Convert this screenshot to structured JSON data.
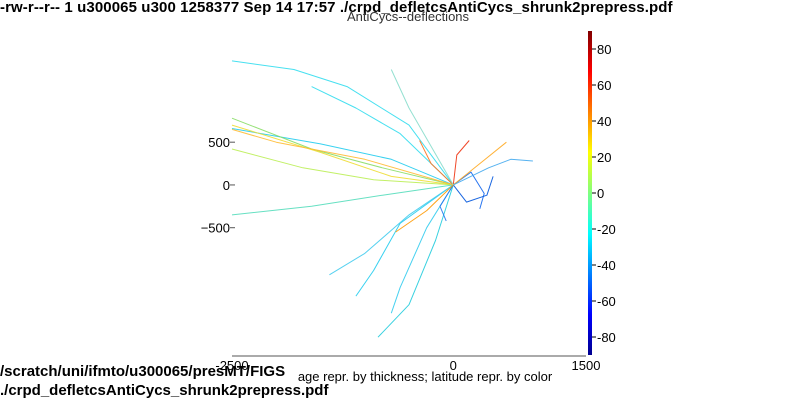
{
  "header": {
    "text": "-rw-r--r-- 1 u300065 u300 1258377 Sep 14 17:57 ./crpd_defletcsAntiCycs_shrunk2prepress.pdf"
  },
  "footer": {
    "line1": "/scratch/uni/ifmto/u300065/presMT/FIGS",
    "line2": "./crpd_defletcsAntiCycs_shrunk2prepress.pdf"
  },
  "chart_data": {
    "type": "line",
    "title": "AntiCycs--deflections",
    "xlabel": "age repr. by thickness; latitude repr. by color",
    "ylabel": "",
    "xlim": [
      -2500,
      1500
    ],
    "ylim": [
      -2000,
      1800
    ],
    "x_ticks": [
      {
        "value": -2500,
        "label": "-2500"
      },
      {
        "value": 0,
        "label": "0"
      },
      {
        "value": 1500,
        "label": "1500"
      }
    ],
    "y_ticks": [
      {
        "value": 500,
        "label": "500"
      },
      {
        "value": 0,
        "label": "0"
      },
      {
        "value": -500,
        "label": "−500"
      }
    ],
    "colorbar": {
      "range": [
        -90,
        90
      ],
      "ticks": [
        80,
        60,
        40,
        20,
        0,
        -20,
        -40,
        -60,
        -80
      ],
      "colors": [
        "#00008f",
        "#0000ff",
        "#0080ff",
        "#00ffff",
        "#80ff80",
        "#ffff00",
        "#ff8000",
        "#ff0000",
        "#800000"
      ]
    },
    "grid": false,
    "series": [
      {
        "color": "#33ddee",
        "points": [
          [
            0,
            0
          ],
          [
            -500,
            700
          ],
          [
            -1200,
            1150
          ],
          [
            -1800,
            1350
          ],
          [
            -2500,
            1450
          ]
        ]
      },
      {
        "color": "#33ddee",
        "points": [
          [
            0,
            0
          ],
          [
            -600,
            600
          ],
          [
            -1100,
            900
          ],
          [
            -1600,
            1150
          ]
        ]
      },
      {
        "color": "#22ccee",
        "points": [
          [
            0,
            0
          ],
          [
            -700,
            300
          ],
          [
            -1500,
            480
          ],
          [
            -2500,
            660
          ]
        ]
      },
      {
        "color": "#88dd66",
        "points": [
          [
            0,
            0
          ],
          [
            -800,
            200
          ],
          [
            -1600,
            420
          ],
          [
            -2500,
            780
          ]
        ]
      },
      {
        "color": "#eedd33",
        "points": [
          [
            0,
            0
          ],
          [
            -700,
            100
          ],
          [
            -1500,
            380
          ],
          [
            -2500,
            700
          ]
        ]
      },
      {
        "color": "#bbee55",
        "points": [
          [
            0,
            0
          ],
          [
            -900,
            60
          ],
          [
            -1700,
            200
          ],
          [
            -2500,
            420
          ]
        ]
      },
      {
        "color": "#55ddbb",
        "points": [
          [
            0,
            0
          ],
          [
            -800,
            -120
          ],
          [
            -1600,
            -250
          ],
          [
            -2500,
            -350
          ]
        ]
      },
      {
        "color": "#22ccee",
        "points": [
          [
            0,
            0
          ],
          [
            -600,
            -450
          ],
          [
            -900,
            -1000
          ],
          [
            -1100,
            -1300
          ]
        ]
      },
      {
        "color": "#33ccee",
        "points": [
          [
            0,
            0
          ],
          [
            -300,
            -500
          ],
          [
            -600,
            -1200
          ],
          [
            -700,
            -1500
          ]
        ]
      },
      {
        "color": "#22ccdd",
        "points": [
          [
            0,
            0
          ],
          [
            -200,
            -650
          ],
          [
            -500,
            -1400
          ],
          [
            -850,
            -1780
          ]
        ]
      },
      {
        "color": "#44ccee",
        "points": [
          [
            0,
            0
          ],
          [
            -500,
            -350
          ],
          [
            -1000,
            -800
          ],
          [
            -1400,
            -1050
          ]
        ]
      },
      {
        "color": "#1166ee",
        "points": [
          [
            0,
            0
          ],
          [
            200,
            150
          ],
          [
            350,
            -100
          ],
          [
            300,
            -280
          ]
        ]
      },
      {
        "color": "#0055dd",
        "points": [
          [
            0,
            0
          ],
          [
            150,
            -200
          ],
          [
            380,
            -120
          ],
          [
            450,
            100
          ]
        ]
      },
      {
        "color": "#2277ee",
        "points": [
          [
            0,
            0
          ],
          [
            -150,
            -250
          ],
          [
            -80,
            -420
          ]
        ]
      },
      {
        "color": "#ee3311",
        "points": [
          [
            0,
            0
          ],
          [
            40,
            350
          ],
          [
            180,
            520
          ]
        ]
      },
      {
        "color": "#ff7722",
        "points": [
          [
            0,
            0
          ],
          [
            -250,
            250
          ],
          [
            -380,
            520
          ]
        ]
      },
      {
        "color": "#ffaa22",
        "points": [
          [
            0,
            0
          ],
          [
            300,
            250
          ],
          [
            600,
            500
          ]
        ]
      },
      {
        "color": "#ff9900",
        "points": [
          [
            0,
            0
          ],
          [
            -300,
            -300
          ],
          [
            -650,
            -550
          ]
        ]
      },
      {
        "color": "#ffbb33",
        "points": [
          [
            0,
            0
          ],
          [
            -1000,
            300
          ],
          [
            -2000,
            500
          ],
          [
            -2500,
            650
          ]
        ]
      },
      {
        "color": "#44aaee",
        "points": [
          [
            0,
            0
          ],
          [
            400,
            200
          ],
          [
            650,
            300
          ],
          [
            900,
            280
          ]
        ]
      },
      {
        "color": "#88ddcc",
        "points": [
          [
            0,
            0
          ],
          [
            -500,
            900
          ],
          [
            -700,
            1350
          ]
        ]
      }
    ]
  }
}
